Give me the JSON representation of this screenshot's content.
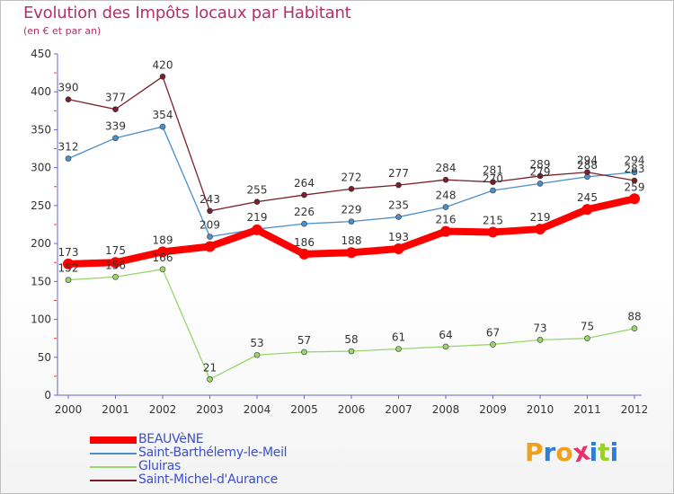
{
  "chart_data": {
    "type": "line",
    "title": "Evolution des Impôts locaux par Habitant",
    "subtitle": "(en € et par an)",
    "xlabel": "",
    "ylabel": "",
    "x": [
      "2000",
      "2001",
      "2002",
      "2003",
      "2004",
      "2005",
      "2006",
      "2007",
      "2008",
      "2009",
      "2010",
      "2011",
      "2012"
    ],
    "ylim": [
      0,
      450
    ],
    "yticks": [
      0,
      50,
      100,
      150,
      200,
      250,
      300,
      350,
      400,
      450
    ],
    "grid": false,
    "legend_position": "bottom-left",
    "series": [
      {
        "name": "BEAUVèNE",
        "color": "#ff0000",
        "values": [
          173,
          175,
          189,
          196,
          218,
          186,
          188,
          193,
          216,
          215,
          219,
          245,
          259
        ],
        "labels": [
          "173",
          "175",
          "189",
          "",
          "",
          "186",
          "188",
          "193",
          "216",
          "215",
          "219",
          "245",
          "259"
        ]
      },
      {
        "name": "Saint-Barthélemy-le-Meil",
        "color": "#4d8fcb",
        "values": [
          312,
          339,
          354,
          209,
          219,
          226,
          229,
          235,
          248,
          270,
          279,
          288,
          294
        ],
        "labels": [
          "312",
          "339",
          "354",
          "209",
          "219",
          "226",
          "229",
          "235",
          "248",
          "270",
          "279",
          "288",
          "294"
        ]
      },
      {
        "name": "Gluiras",
        "color": "#99d66b",
        "values": [
          152,
          156,
          166,
          21,
          53,
          57,
          58,
          61,
          64,
          67,
          73,
          75,
          88
        ],
        "labels": [
          "152",
          "156",
          "166",
          "21",
          "53",
          "57",
          "58",
          "61",
          "64",
          "67",
          "73",
          "75",
          "88"
        ]
      },
      {
        "name": "Saint-Michel-d'Aurance",
        "color": "#7a1f2a",
        "values": [
          390,
          377,
          420,
          243,
          255,
          264,
          272,
          277,
          284,
          281,
          289,
          294,
          283
        ],
        "labels": [
          "390",
          "377",
          "420",
          "243",
          "255",
          "264",
          "272",
          "277",
          "284",
          "281",
          "289",
          "294",
          "283"
        ]
      }
    ]
  },
  "logo": {
    "text": "Proxiti",
    "letters": [
      "P",
      "r",
      "o",
      "x",
      "i",
      "t",
      "i"
    ],
    "colors": [
      "#f0a020",
      "#2d7fd6",
      "#f0a020",
      "#e83070",
      "#2d7fd6",
      "#9ad02c",
      "#2d7fd6"
    ]
  }
}
